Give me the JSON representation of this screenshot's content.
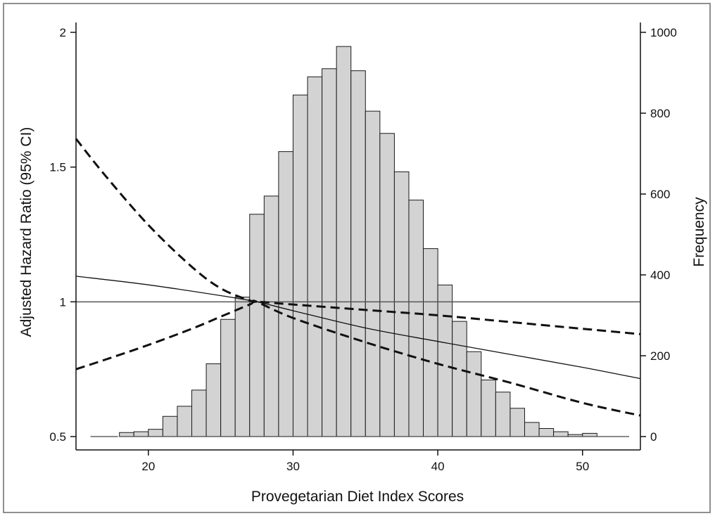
{
  "chart_data": {
    "type": "bar",
    "title": "",
    "xlabel": "Provegetarian Diet Index Scores",
    "ylabel_left": "Adjusted Hazard Ratio (95% CI)",
    "ylabel_right": "Frequency",
    "xlim": [
      15,
      54
    ],
    "ylim_left": [
      0.5,
      2
    ],
    "ylim_right": [
      0,
      1000
    ],
    "x_ticks": [
      20,
      30,
      40,
      50
    ],
    "y_left_ticks": [
      0.5,
      1,
      1.5,
      2
    ],
    "y_left_tick_labels": [
      "0.5",
      "1",
      "1.5",
      "2"
    ],
    "y_right_ticks": [
      0,
      200,
      400,
      600,
      800,
      1000
    ],
    "grid": false,
    "legend": "none",
    "histogram": {
      "axis": "right",
      "bin_width": 1,
      "bin_starts": [
        18,
        19,
        20,
        21,
        22,
        23,
        24,
        25,
        26,
        27,
        28,
        29,
        30,
        31,
        32,
        33,
        34,
        35,
        36,
        37,
        38,
        39,
        40,
        41,
        42,
        43,
        44,
        45,
        46,
        47,
        48,
        49,
        50
      ],
      "values": [
        10,
        12,
        18,
        50,
        75,
        115,
        180,
        290,
        345,
        550,
        595,
        705,
        845,
        890,
        910,
        965,
        905,
        805,
        750,
        655,
        585,
        465,
        375,
        285,
        210,
        140,
        110,
        70,
        35,
        20,
        12,
        5,
        8
      ],
      "color": "#d3d3d3",
      "stroke": "#1a1a1a"
    },
    "reference_line": {
      "axis": "left",
      "y": 1,
      "color": "#555555"
    },
    "series": [
      {
        "axis": "left",
        "style": "solid",
        "x": [
          15,
          20,
          25,
          27.5,
          30,
          35,
          40,
          45,
          50,
          54
        ],
        "y": [
          1.095,
          1.063,
          1.023,
          1.0,
          0.967,
          0.903,
          0.853,
          0.805,
          0.757,
          0.715
        ]
      },
      {
        "axis": "left",
        "style": "dashed",
        "x": [
          15,
          17,
          20,
          23,
          25,
          27,
          27.5,
          30,
          35,
          40,
          45,
          50,
          54
        ],
        "y": [
          1.605,
          1.47,
          1.285,
          1.13,
          1.05,
          1.005,
          1.0,
          0.94,
          0.85,
          0.77,
          0.7,
          0.625,
          0.578
        ]
      },
      {
        "axis": "left",
        "style": "dashed",
        "x": [
          15,
          17,
          20,
          23,
          25,
          27,
          27.5,
          30,
          35,
          40,
          45,
          50,
          54
        ],
        "y": [
          0.75,
          0.785,
          0.84,
          0.9,
          0.945,
          0.99,
          1.0,
          0.99,
          0.97,
          0.95,
          0.925,
          0.9,
          0.88
        ]
      }
    ],
    "legend_stub": {
      "axis": "left",
      "y": 0.5,
      "x": [
        16,
        17.9
      ]
    }
  }
}
